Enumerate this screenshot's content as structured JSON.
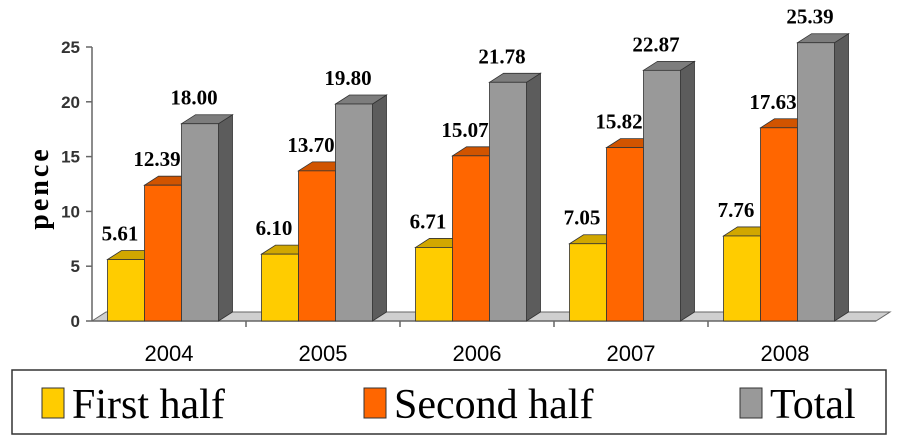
{
  "chart_data": {
    "type": "bar",
    "style": "3d-clustered-column",
    "categories": [
      "2004",
      "2005",
      "2006",
      "2007",
      "2008"
    ],
    "series": [
      {
        "name": "First half",
        "color": "#FFCC00",
        "values": [
          5.61,
          6.1,
          6.71,
          7.05,
          7.76
        ]
      },
      {
        "name": "Second half",
        "color": "#FF6600",
        "values": [
          12.39,
          13.7,
          15.07,
          15.82,
          17.63
        ]
      },
      {
        "name": "Total",
        "color": "#999999",
        "values": [
          18.0,
          19.8,
          21.78,
          22.87,
          25.39
        ]
      }
    ],
    "data_labels": [
      [
        "5.61",
        "12.39",
        "18.00"
      ],
      [
        "6.10",
        "13.70",
        "19.80"
      ],
      [
        "6.71",
        "15.07",
        "21.78"
      ],
      [
        "7.05",
        "15.82",
        "22.87"
      ],
      [
        "7.76",
        "17.63",
        "25.39"
      ]
    ],
    "ylabel": "pence",
    "xlabel": "",
    "ylim": [
      0,
      25
    ],
    "yticks": [
      "0",
      "5",
      "10",
      "15",
      "20",
      "25"
    ],
    "grid": false,
    "legend_position": "bottom"
  }
}
